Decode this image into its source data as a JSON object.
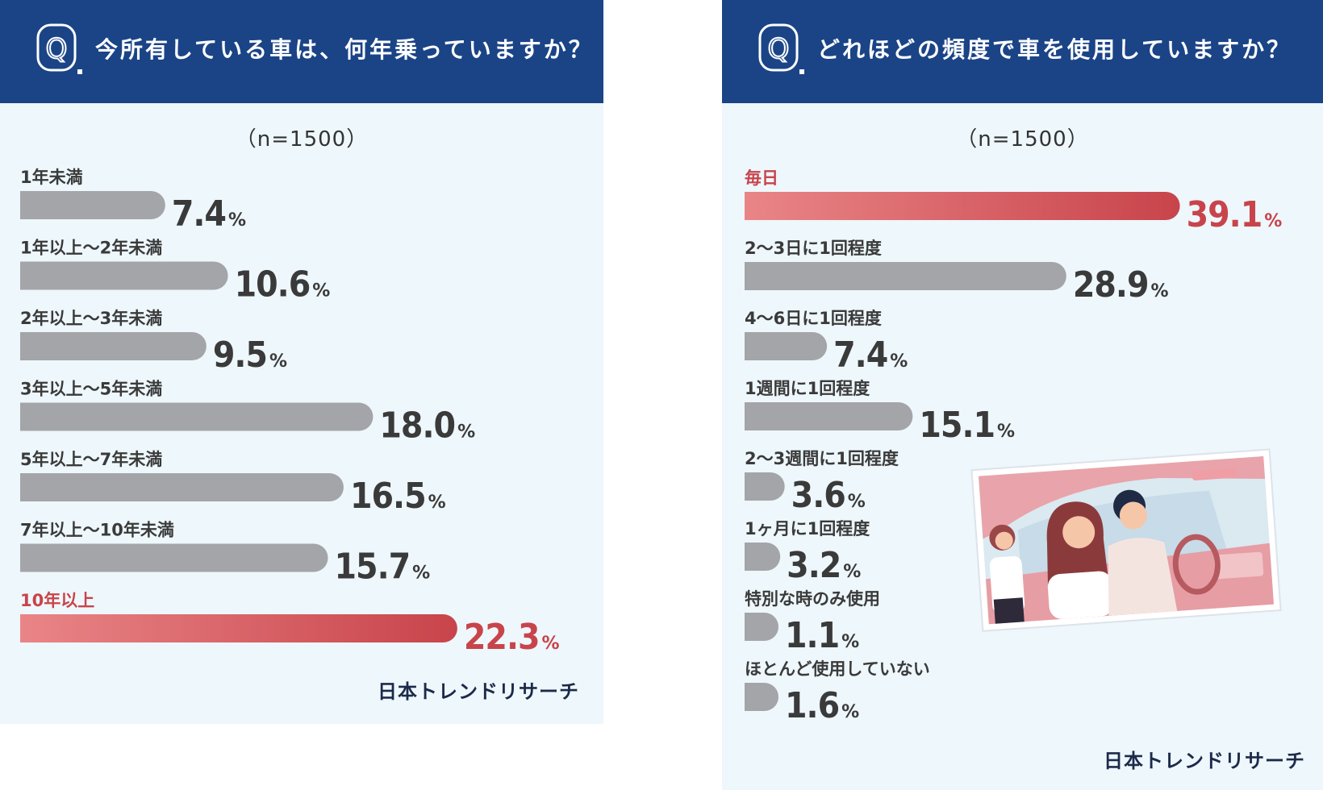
{
  "left_panel": {
    "question_mark": "Q.",
    "question": "今所有している車は、何年乗っていますか？",
    "sample": "（n=1500）",
    "brand": "日本トレンドリサーチ"
  },
  "right_panel": {
    "question_mark": "Q.",
    "question": "どれほどの頻度で車を使用していますか？",
    "sample": "（n=1500）",
    "brand": "日本トレンドリサーチ"
  },
  "colors": {
    "header": "#1b4487",
    "panel_bg": "#eef7fb",
    "bar_gray": "#a4a5a9",
    "highlight_start": "#e98587",
    "highlight_end": "#c8444b",
    "highlight_text": "#c8444b"
  },
  "chart_data": [
    {
      "type": "bar",
      "orientation": "horizontal",
      "title": "今所有している車は、何年乗っていますか？",
      "unit": "%",
      "categories": [
        "1年未満",
        "1年以上～2年未満",
        "2年以上～3年未満",
        "3年以上～5年未満",
        "5年以上～7年未満",
        "7年以上～10年未満",
        "10年以上"
      ],
      "values": [
        7.4,
        10.6,
        9.5,
        18.0,
        16.5,
        15.7,
        22.3
      ],
      "value_labels": [
        "7.4",
        "10.6",
        "9.5",
        "18.0",
        "16.5",
        "15.7",
        "22.3"
      ],
      "highlight": "10年以上",
      "xlim": [
        0,
        25
      ]
    },
    {
      "type": "bar",
      "orientation": "horizontal",
      "title": "どれほどの頻度で車を使用していますか？",
      "unit": "%",
      "categories": [
        "毎日",
        "2～3日に1回程度",
        "4～6日に1回程度",
        "1週間に1回程度",
        "2～3週間に1回程度",
        "1ヶ月に1回程度",
        "特別な時のみ使用",
        "ほとんど使用していない"
      ],
      "values": [
        39.1,
        28.9,
        7.4,
        15.1,
        3.6,
        3.2,
        1.1,
        1.6
      ],
      "value_labels": [
        "39.1",
        "28.9",
        "7.4",
        "15.1",
        "3.6",
        "3.2",
        "1.1",
        "1.6"
      ],
      "highlight": "毎日",
      "xlim": [
        0,
        40
      ]
    }
  ]
}
